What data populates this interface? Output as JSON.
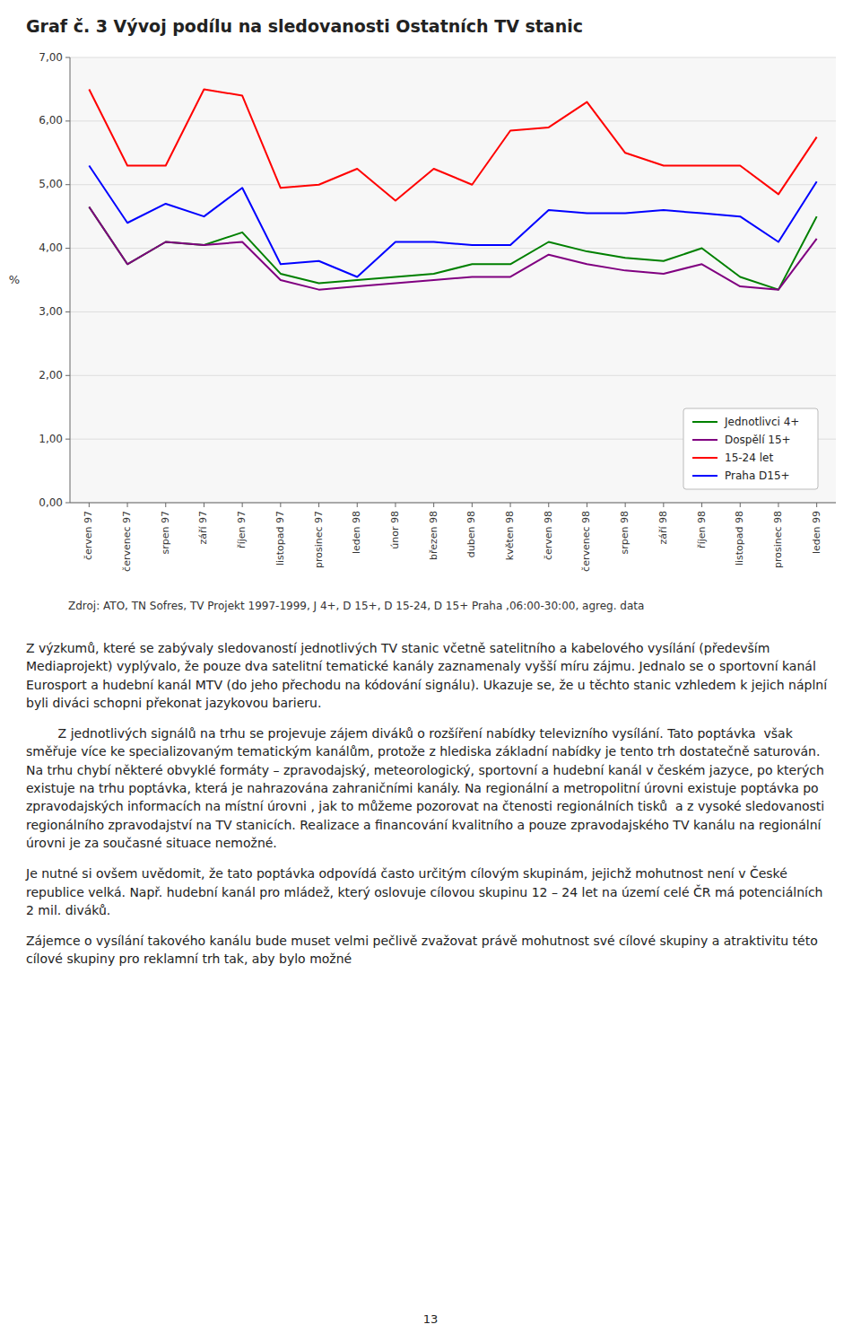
{
  "chart_data": {
    "type": "line",
    "title": "Graf č. 3 Vývoj podílu na sledovanosti Ostatních TV stanic",
    "ylabel": "%",
    "categories": [
      "červen 97",
      "červenec 97",
      "srpen 97",
      "září 97",
      "říjen 97",
      "listopad 97",
      "prosinec 97",
      "leden 98",
      "únor 98",
      "březen 98",
      "duben 98",
      "květen 98",
      "červen 98",
      "červenec 98",
      "srpen 98",
      "září 98",
      "říjen 98",
      "listopad 98",
      "prosinec 98",
      "leden 99"
    ],
    "series": [
      {
        "name": "Jednotlivci 4+",
        "color": "#008000",
        "values": [
          4.65,
          3.75,
          4.1,
          4.05,
          4.25,
          3.6,
          3.45,
          3.5,
          3.55,
          3.6,
          3.75,
          3.75,
          4.1,
          3.95,
          3.85,
          3.8,
          4.0,
          3.55,
          3.35,
          4.5
        ]
      },
      {
        "name": "Dospělí 15+",
        "color": "#800080",
        "values": [
          4.65,
          3.75,
          4.1,
          4.05,
          4.1,
          3.5,
          3.35,
          3.4,
          3.45,
          3.5,
          3.55,
          3.55,
          3.9,
          3.75,
          3.65,
          3.6,
          3.75,
          3.4,
          3.35,
          4.15
        ]
      },
      {
        "name": "15-24 let",
        "color": "#FF0000",
        "values": [
          6.5,
          5.3,
          5.3,
          6.5,
          6.4,
          4.95,
          5.0,
          5.25,
          4.75,
          5.25,
          5.0,
          5.85,
          5.9,
          6.3,
          5.5,
          5.3,
          5.3,
          5.3,
          4.85,
          5.75
        ]
      },
      {
        "name": "Praha D15+",
        "color": "#0000FF",
        "values": [
          5.3,
          4.4,
          4.7,
          4.5,
          4.95,
          3.75,
          3.8,
          3.55,
          4.1,
          4.1,
          4.05,
          4.05,
          4.6,
          4.55,
          4.55,
          4.6,
          4.55,
          4.5,
          4.1,
          5.05
        ]
      }
    ],
    "ylim": [
      0.0,
      7.0
    ],
    "yticks": [
      {
        "value": 0.0,
        "label": "0,00"
      },
      {
        "value": 1.0,
        "label": "1,00"
      },
      {
        "value": 2.0,
        "label": "2,00"
      },
      {
        "value": 3.0,
        "label": "3,00"
      },
      {
        "value": 4.0,
        "label": "4,00"
      },
      {
        "value": 5.0,
        "label": "5,00"
      },
      {
        "value": 6.0,
        "label": "6,00"
      },
      {
        "value": 7.0,
        "label": "7,00"
      }
    ],
    "grid": true,
    "legend": "lower right"
  },
  "page_text": {
    "source": "Zdroj: ATO, TN Sofres, TV Projekt 1997-1999,  J 4+, D 15+, D 15-24, D 15+ Praha ,06:00-30:00, agreg. data",
    "paragraphs": [
      "Z výzkumů, které se zabývaly sledovaností jednotlivých TV stanic včetně satelitního a kabelového vysílání (především Mediaprojekt) vyplývalo, že pouze dva satelitní tematické kanály zaznamenaly vyšší míru zájmu. Jednalo se o sportovní kanál Eurosport a hudební kanál MTV (do jeho přechodu na kódování signálu). Ukazuje se, že u těchto stanic vzhledem k jejich náplní byli diváci schopni překonat jazykovou barieru.",
      "\tZ jednotlivých signálů na trhu se projevuje zájem diváků o rozšíření nabídky televizního vysílání. Tato poptávka  však směřuje více ke specializovaným tematickým kanálům, protože z hlediska základní nabídky je tento trh dostatečně saturován. Na trhu chybí některé obvyklé formáty – zpravodajský, meteorologický, sportovní a hudební kanál v českém jazyce, po kterých existuje na trhu poptávka, která je nahrazována zahraničními kanály. Na regionální a metropolitní úrovni existuje poptávka po zpravodajských informacích na místní úrovni , jak to můžeme pozorovat na čtenosti regionálních tisků  a z vysoké sledovanosti regionálního zpravodajství na TV stanicích. Realizace a financování kvalitního a pouze zpravodajského TV kanálu na regionální úrovni je za současné situace nemožné.",
      "Je nutné si ovšem uvědomit, že tato poptávka odpovídá často určitým cílovým skupinám, jejichž mohutnost není v České republice velká. Např. hudební kanál pro mládež, který oslovuje cílovou skupinu 12 – 24 let na území celé ČR má potenciálních 2 mil. diváků.",
      "Zájemce o vysílání takového kanálu bude muset velmi pečlivě zvažovat právě mohutnost své cílové skupiny a atraktivitu této cílové skupiny pro reklamní trh tak, aby bylo možné"
    ],
    "page_number": "13"
  }
}
